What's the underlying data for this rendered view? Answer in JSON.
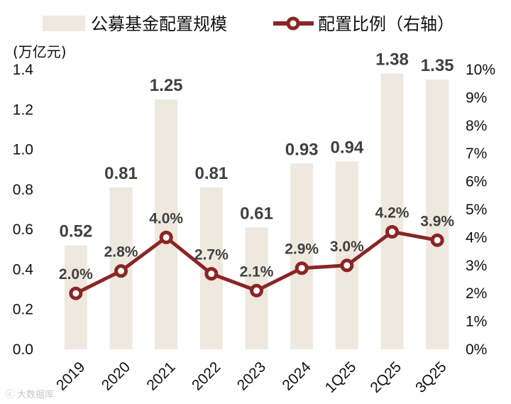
{
  "chart_data": {
    "type": "bar",
    "categories": [
      "2019",
      "2020",
      "2021",
      "2022",
      "2023",
      "2024",
      "1Q25",
      "2Q25",
      "3Q25"
    ],
    "series": [
      {
        "name": "公募基金配置规模",
        "type": "bar",
        "axis": "left",
        "values": [
          0.52,
          0.81,
          1.25,
          0.81,
          0.61,
          0.93,
          0.94,
          1.38,
          1.35
        ],
        "labels": [
          "0.52",
          "0.81",
          "1.25",
          "0.81",
          "0.61",
          "0.93",
          "0.94",
          "1.38",
          "1.35"
        ],
        "color": "#EEE8DE"
      },
      {
        "name": "配置比例（右轴）",
        "type": "line",
        "axis": "right",
        "values": [
          2.0,
          2.8,
          4.0,
          2.7,
          2.1,
          2.9,
          3.0,
          4.2,
          3.9
        ],
        "labels": [
          "2.0%",
          "2.8%",
          "4.0%",
          "2.7%",
          "2.1%",
          "2.9%",
          "3.0%",
          "4.2%",
          "3.9%"
        ],
        "color": "#8B2525"
      }
    ],
    "y_left": {
      "unit_label": "(万亿元)",
      "range": [
        0,
        1.4
      ],
      "ticks": [
        "0.0",
        "0.2",
        "0.4",
        "0.6",
        "0.8",
        "1.0",
        "1.2",
        "1.4"
      ]
    },
    "y_right": {
      "range": [
        0,
        10
      ],
      "ticks": [
        "0%",
        "1%",
        "2%",
        "3%",
        "4%",
        "5%",
        "6%",
        "7%",
        "8%",
        "9%",
        "10%"
      ]
    },
    "legend_position": "top",
    "grid": false
  },
  "watermark": "大数据库"
}
